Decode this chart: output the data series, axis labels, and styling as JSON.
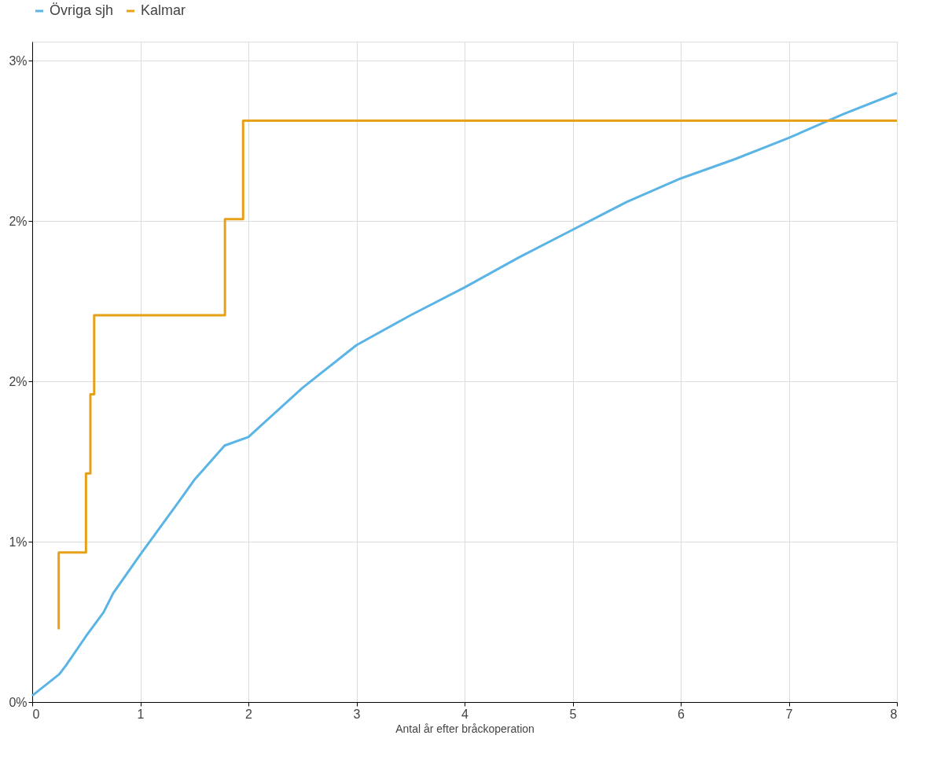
{
  "chart_data": {
    "type": "line",
    "xlabel": "Antal år efter bråckoperation",
    "xlim": [
      0,
      8
    ],
    "xticks": [
      0,
      1,
      2,
      3,
      4,
      5,
      6,
      7,
      8
    ],
    "ylim": [
      0,
      3.09
    ],
    "yticks": [
      {
        "value": 0,
        "label": "0%"
      },
      {
        "value": 0.75,
        "label": "1%"
      },
      {
        "value": 1.5,
        "label": "2%"
      },
      {
        "value": 2.25,
        "label": "2%"
      },
      {
        "value": 3,
        "label": "3%"
      }
    ],
    "grid": true,
    "legend": "top left",
    "line_style": "solid",
    "marker": "none",
    "series": [
      {
        "name": "Övriga sjh",
        "color": "#5ab4e5",
        "x": [
          0,
          0.25,
          0.31,
          0.5,
          0.66,
          0.75,
          1,
          1.36,
          1.5,
          1.78,
          2,
          2.5,
          3,
          3.5,
          4,
          4.5,
          5,
          5.5,
          6,
          6.5,
          7,
          7.5,
          8
        ],
        "values": [
          0.03,
          0.13,
          0.17,
          0.31,
          0.42,
          0.51,
          0.69,
          0.94,
          1.04,
          1.2,
          1.24,
          1.47,
          1.67,
          1.81,
          1.94,
          2.08,
          2.21,
          2.34,
          2.45,
          2.54,
          2.64,
          2.75,
          2.85
        ]
      },
      {
        "name": "Kalmar",
        "color": "#e6a118",
        "type": "step",
        "x": [
          0.245,
          0.245,
          0.497,
          0.538,
          0.573,
          1.783,
          1.951,
          8
        ],
        "values": [
          0.34,
          0.7,
          1.07,
          1.44,
          1.81,
          2.26,
          2.72,
          2.72
        ]
      }
    ]
  }
}
